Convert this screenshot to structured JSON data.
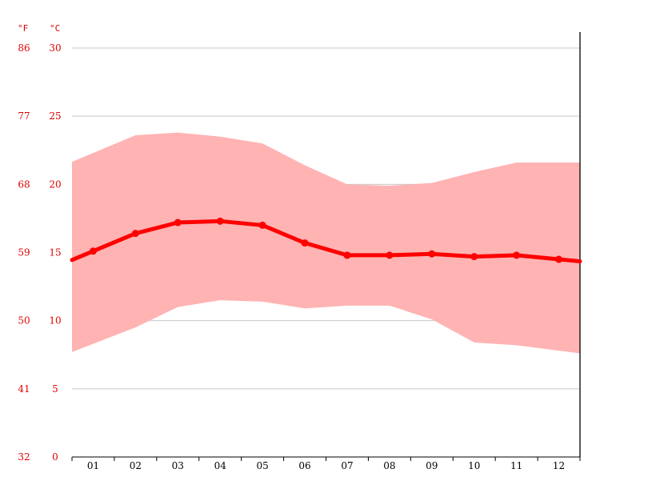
{
  "chart_data": {
    "type": "line",
    "units": {
      "fahrenheit": "°F",
      "celsius": "°C"
    },
    "categories": [
      "01",
      "02",
      "03",
      "04",
      "05",
      "06",
      "07",
      "08",
      "09",
      "10",
      "11",
      "12"
    ],
    "y_ticks_c": [
      0,
      5,
      10,
      15,
      20,
      25,
      30
    ],
    "y_ticks_f": [
      32,
      41,
      50,
      59,
      68,
      77,
      86
    ],
    "ylim": [
      0,
      30
    ],
    "grid": true,
    "colors": {
      "line": "#ff0000",
      "band": "#ffb3b3",
      "tick_text": "#e00000",
      "grid": "#c8c8c8"
    },
    "series": [
      {
        "values": [
          15.1,
          16.4,
          17.2,
          17.3,
          17.0,
          15.7,
          14.8,
          14.8,
          14.9,
          14.7,
          14.8,
          14.5
        ]
      },
      {
        "values": [
          22.3,
          23.6,
          23.8,
          23.5,
          23.0,
          21.4,
          20.0,
          19.9,
          20.1,
          20.9,
          21.6,
          21.6
        ]
      },
      {
        "values": [
          8.3,
          9.5,
          11.0,
          11.5,
          11.4,
          10.9,
          11.1,
          11.1,
          10.1,
          8.4,
          8.2,
          7.8
        ]
      }
    ]
  }
}
